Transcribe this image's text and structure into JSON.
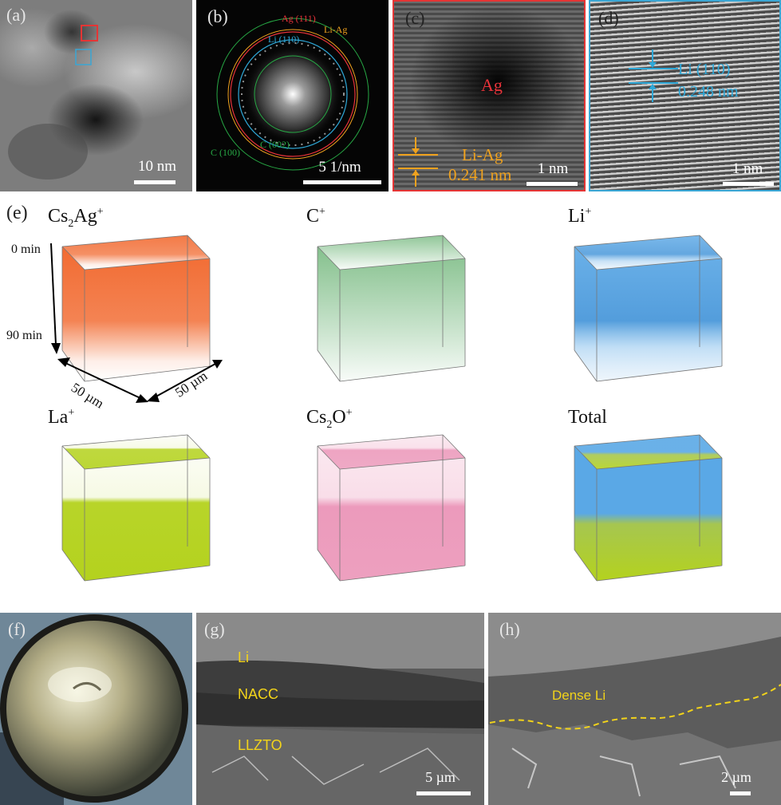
{
  "figure": {
    "top_row": {
      "a": {
        "label": "(a)",
        "scale": "10 nm"
      },
      "b": {
        "label": "(b)",
        "scale": "5 1/nm",
        "rings": {
          "ag111": "Ag (111)",
          "liag": "Li-Ag",
          "li110": "Li (110)",
          "c100": "C (100)",
          "c002": "C (002)"
        },
        "colors": {
          "ag": "#e8333a",
          "liag": "#f0a21e",
          "li": "#2ea8d8",
          "c": "#27a845"
        }
      },
      "c": {
        "label": "(c)",
        "scale": "1 nm",
        "phase": "Ag",
        "lattice_name": "Li-Ag",
        "lattice_spacing": "0.241 nm",
        "border_color": "#e53535"
      },
      "d": {
        "label": "(d)",
        "scale": "1 nm",
        "lattice_name": "Li (110)",
        "lattice_spacing": "0.248 nm",
        "border_color": "#3aa6d4"
      }
    },
    "tof_sims": {
      "label": "(e)",
      "time_start": "0 min",
      "time_end": "90 min",
      "dim_x": "50 µm",
      "dim_y": "50 µm",
      "cubes": [
        {
          "title": "Cs₂Ag⁺",
          "color": "#f05a1a"
        },
        {
          "title": "C⁺",
          "color": "#1f8c2e"
        },
        {
          "title": "Li⁺",
          "color": "#5aa8e6"
        },
        {
          "title": "La⁺",
          "color": "#b4d21e"
        },
        {
          "title": "Cs₂O⁺",
          "color": "#ea8fb4"
        },
        {
          "title": "Total",
          "color": "#5aa8e6"
        }
      ]
    },
    "bottom_row": {
      "f": {
        "label": "(f)"
      },
      "g": {
        "label": "(g)",
        "scale": "5 µm",
        "layers": [
          "Li",
          "NACC",
          "LLZTO"
        ]
      },
      "h": {
        "label": "(h)",
        "scale": "2 µm",
        "region": "Dense Li"
      }
    },
    "annotation_color": "#f2d31a"
  }
}
